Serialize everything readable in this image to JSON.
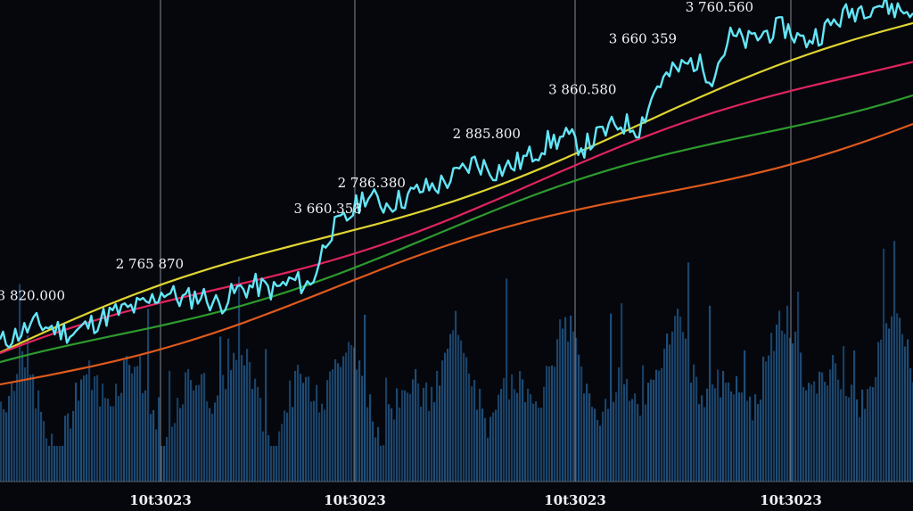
{
  "chart_data": {
    "type": "line",
    "title": "",
    "xlabel": "",
    "ylabel": "",
    "grid": "vertical lines at each x tick",
    "legend": "none",
    "x_tick_labels": [
      "10t3023",
      "10t3023",
      "10t3023",
      "10t3023"
    ],
    "x_range": [
      0,
      100
    ],
    "y_range": [
      0,
      100
    ],
    "colors": {
      "background": "#05070d",
      "price": "#63e6f7",
      "ma_yellow": "#e0d531",
      "ma_red": "#e0245e",
      "ma_green": "#2e9a2e",
      "ma_orange": "#e05a1c",
      "volume": "#1f4e79",
      "gridline": "#8a8f99"
    },
    "price_labels": [
      {
        "text": "3 820.000",
        "x": 3.4,
        "y": 38
      },
      {
        "text": "2 765 870",
        "x": 16.4,
        "y": 44.6
      },
      {
        "text": "3 660.358",
        "x": 35.9,
        "y": 56.2
      },
      {
        "text": "2 786.380",
        "x": 40.7,
        "y": 61.6
      },
      {
        "text": "2 885.800",
        "x": 53.3,
        "y": 71.8
      },
      {
        "text": "3 860.580",
        "x": 63.8,
        "y": 81.1
      },
      {
        "text": "3 660 359",
        "x": 70.4,
        "y": 91.7
      },
      {
        "text": "3 760.560",
        "x": 78.8,
        "y": 98.3
      }
    ],
    "series": [
      {
        "x": [
          0,
          2,
          4,
          6,
          8,
          10,
          12,
          14,
          16,
          18,
          20,
          22,
          24,
          26,
          28,
          30,
          32,
          34,
          36,
          38,
          40,
          42,
          44,
          46,
          48,
          50,
          52,
          54,
          56,
          58,
          60,
          62,
          64,
          66,
          68,
          70,
          72,
          74,
          76,
          78,
          80,
          82,
          84,
          86,
          88,
          90,
          92,
          94,
          96,
          98,
          100
        ],
        "values": [
          29,
          31,
          33,
          32,
          31,
          33,
          35,
          36,
          37,
          40,
          38,
          39,
          37,
          40,
          41,
          40,
          42,
          41,
          52,
          55,
          60,
          58,
          59,
          61,
          62,
          64,
          67,
          65,
          66,
          68,
          71,
          72,
          70,
          73,
          75,
          74,
          83,
          86,
          88,
          85,
          93,
          92,
          94,
          95,
          92,
          94,
          97,
          99,
          100,
          99,
          98
        ]
      },
      {
        "x": [
          0,
          100
        ],
        "values": [
          27,
          95
        ]
      },
      {
        "x": [
          0,
          100
        ],
        "values": [
          25,
          89
        ]
      },
      {
        "x": [
          0,
          100
        ],
        "values": [
          23,
          83
        ]
      },
      {
        "x": [
          0,
          100
        ],
        "values": [
          20,
          76
        ]
      }
    ],
    "volume": {
      "x_range": [
        0,
        100
      ],
      "max": 60
    }
  }
}
